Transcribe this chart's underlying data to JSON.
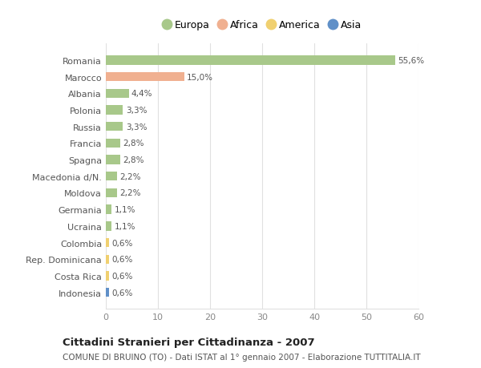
{
  "countries": [
    "Romania",
    "Marocco",
    "Albania",
    "Polonia",
    "Russia",
    "Francia",
    "Spagna",
    "Macedonia d/N.",
    "Moldova",
    "Germania",
    "Ucraina",
    "Colombia",
    "Rep. Dominicana",
    "Costa Rica",
    "Indonesia"
  ],
  "values": [
    55.6,
    15.0,
    4.4,
    3.3,
    3.3,
    2.8,
    2.8,
    2.2,
    2.2,
    1.1,
    1.1,
    0.6,
    0.6,
    0.6,
    0.6
  ],
  "labels": [
    "55,6%",
    "15,0%",
    "4,4%",
    "3,3%",
    "3,3%",
    "2,8%",
    "2,8%",
    "2,2%",
    "2,2%",
    "1,1%",
    "1,1%",
    "0,6%",
    "0,6%",
    "0,6%",
    "0,6%"
  ],
  "continents": [
    "Europa",
    "Africa",
    "Europa",
    "Europa",
    "Europa",
    "Europa",
    "Europa",
    "Europa",
    "Europa",
    "Europa",
    "Europa",
    "America",
    "America",
    "America",
    "Asia"
  ],
  "continent_colors": {
    "Europa": "#a8c88a",
    "Africa": "#f0b090",
    "America": "#f0d070",
    "Asia": "#6090c8"
  },
  "legend_items": [
    "Europa",
    "Africa",
    "America",
    "Asia"
  ],
  "legend_colors": [
    "#a8c88a",
    "#f0b090",
    "#f0d070",
    "#6090c8"
  ],
  "title": "Cittadini Stranieri per Cittadinanza - 2007",
  "subtitle": "COMUNE DI BRUINO (TO) - Dati ISTAT al 1° gennaio 2007 - Elaborazione TUTTITALIA.IT",
  "xlim": [
    0,
    60
  ],
  "xticks": [
    0,
    10,
    20,
    30,
    40,
    50,
    60
  ],
  "background_color": "#ffffff",
  "bar_height": 0.55,
  "grid_color": "#e0e0e0",
  "label_color": "#555555",
  "tick_color": "#888888"
}
